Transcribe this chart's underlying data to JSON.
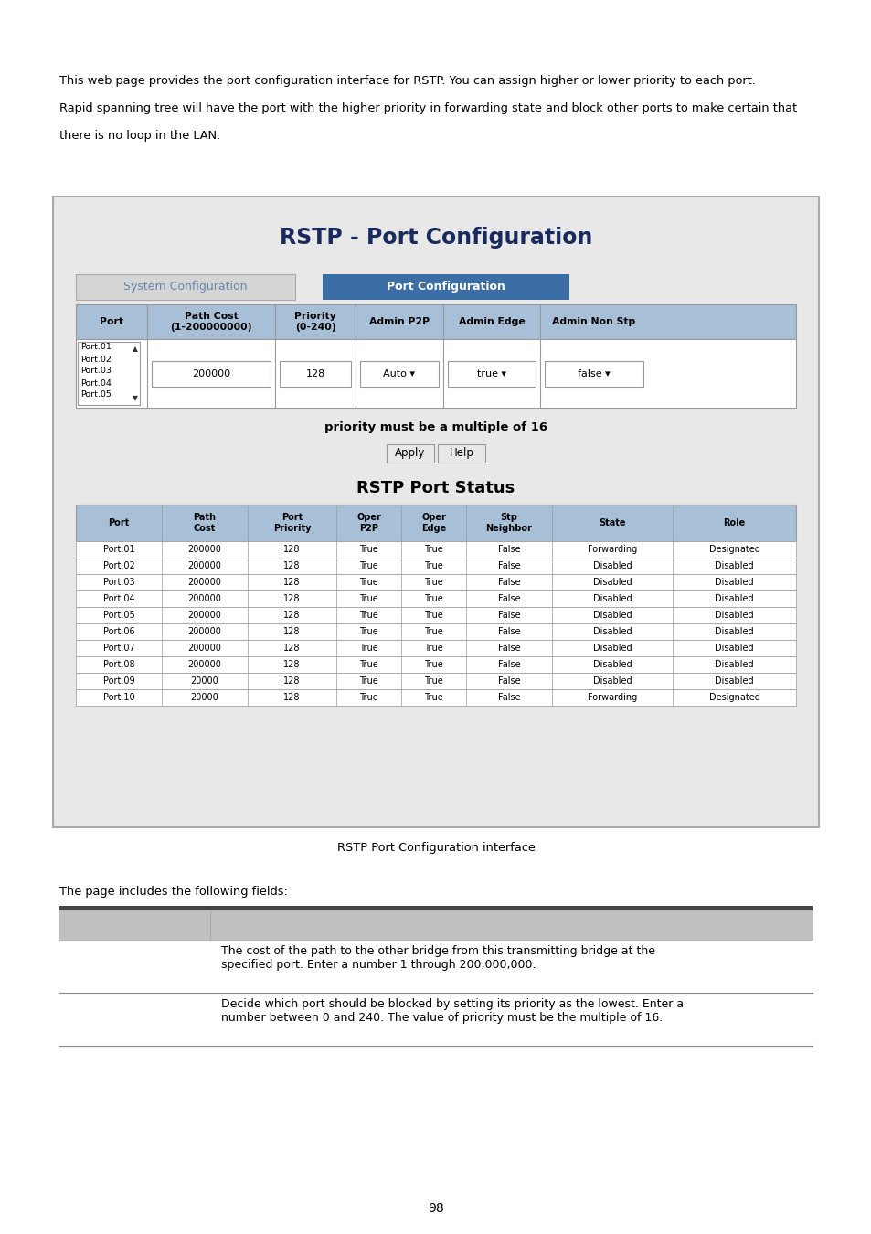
{
  "intro_text_line1": "This web page provides the port configuration interface for RSTP. You can assign higher or lower priority to each port.",
  "intro_text_line2": "Rapid spanning tree will have the port with the higher priority in forwarding state and block other ports to make certain that",
  "intro_text_line3": "there is no loop in the LAN.",
  "box_title": "RSTP - Port Configuration",
  "tab1": "System Configuration",
  "tab2": "Port Configuration",
  "config_headers": [
    "Port",
    "Path Cost\n(1-200000000)",
    "Priority\n(0-240)",
    "Admin P2P",
    "Admin Edge",
    "Admin Non Stp"
  ],
  "config_ports": [
    "Port.01",
    "Port.02",
    "Port.03",
    "Port.04",
    "Port.05"
  ],
  "config_values": [
    "200000",
    "128",
    "Auto ▾",
    "true ▾",
    "false ▾"
  ],
  "priority_note": "priority must be a multiple of 16",
  "btn_apply": "Apply",
  "btn_help": "Help",
  "status_title": "RSTP Port Status",
  "status_headers": [
    "Port",
    "Path\nCost",
    "Port\nPriority",
    "Oper\nP2P",
    "Oper\nEdge",
    "Stp\nNeighbor",
    "State",
    "Role"
  ],
  "status_rows": [
    [
      "Port.01",
      "200000",
      "128",
      "True",
      "True",
      "False",
      "Forwarding",
      "Designated"
    ],
    [
      "Port.02",
      "200000",
      "128",
      "True",
      "True",
      "False",
      "Disabled",
      "Disabled"
    ],
    [
      "Port.03",
      "200000",
      "128",
      "True",
      "True",
      "False",
      "Disabled",
      "Disabled"
    ],
    [
      "Port.04",
      "200000",
      "128",
      "True",
      "True",
      "False",
      "Disabled",
      "Disabled"
    ],
    [
      "Port.05",
      "200000",
      "128",
      "True",
      "True",
      "False",
      "Disabled",
      "Disabled"
    ],
    [
      "Port.06",
      "200000",
      "128",
      "True",
      "True",
      "False",
      "Disabled",
      "Disabled"
    ],
    [
      "Port.07",
      "200000",
      "128",
      "True",
      "True",
      "False",
      "Disabled",
      "Disabled"
    ],
    [
      "Port.08",
      "200000",
      "128",
      "True",
      "True",
      "False",
      "Disabled",
      "Disabled"
    ],
    [
      "Port.09",
      "20000",
      "128",
      "True",
      "True",
      "False",
      "Disabled",
      "Disabled"
    ],
    [
      "Port.10",
      "20000",
      "128",
      "True",
      "True",
      "False",
      "Forwarding",
      "Designated"
    ]
  ],
  "caption": "RSTP Port Configuration interface",
  "fields_title": "The page includes the following fields:",
  "table2_col2_row1": "The cost of the path to the other bridge from this transmitting bridge at the\nspecified port. Enter a number 1 through 200,000,000.",
  "table2_col2_row2": "Decide which port should be blocked by setting its priority as the lowest. Enter a\nnumber between 0 and 240. The value of priority must be the multiple of 16.",
  "page_number": "98",
  "box_bg": "#e8e8e8",
  "header_light_blue": "#a8bfd8",
  "tab_active_blue": "#3b6ea5",
  "title_dark_blue": "#1a2a5e",
  "border_color": "#999999"
}
